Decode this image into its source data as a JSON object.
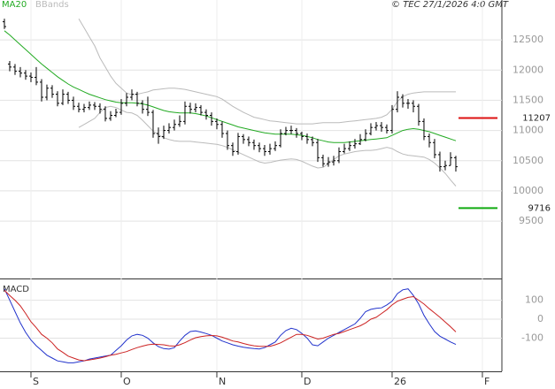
{
  "chart_data": [
    {
      "type": "ohlc",
      "source": "© TEC 27/1/2026 4:0 GMT",
      "ylim": [
        8550,
        13160
      ],
      "yticks": [
        9500,
        10000,
        10500,
        11000,
        11500,
        12000,
        12500
      ],
      "grid": true,
      "ohlc": {
        "color": "#000000",
        "open": [
          12800,
          12100,
          12050,
          11980,
          11950,
          11900,
          11880,
          11800,
          11550,
          11700,
          11600,
          11450,
          11600,
          11500,
          11400,
          11350,
          11380,
          11420,
          11400,
          11350,
          11200,
          11250,
          11300,
          11450,
          11550,
          11600,
          11450,
          11350,
          11300,
          10950,
          10900,
          11000,
          11050,
          11100,
          11150,
          11400,
          11350,
          11380,
          11300,
          11250,
          11150,
          11100,
          10950,
          10750,
          10650,
          10900,
          10850,
          10800,
          10750,
          10700,
          10650,
          10700,
          10750,
          10950,
          11000,
          11000,
          10950,
          10900,
          10850,
          10800,
          10550,
          10450,
          10480,
          10500,
          10650,
          10700,
          10750,
          10780,
          10850,
          10950,
          11050,
          11080,
          11050,
          11000,
          11350,
          11550,
          11450,
          11450,
          11400,
          11150,
          10900,
          10800,
          10600,
          10400,
          10420,
          10550
        ],
        "high": [
          12850,
          12150,
          12100,
          12050,
          12000,
          11960,
          12050,
          11850,
          11760,
          11750,
          11650,
          11680,
          11640,
          11560,
          11460,
          11440,
          11480,
          11470,
          11450,
          11400,
          11320,
          11360,
          11520,
          11620,
          11680,
          11640,
          11500,
          11560,
          11340,
          11050,
          11080,
          11120,
          11180,
          11250,
          11480,
          11460,
          11450,
          11420,
          11350,
          11300,
          11200,
          11150,
          11000,
          10800,
          10960,
          10940,
          10900,
          10850,
          10800,
          10760,
          10780,
          10820,
          11020,
          11060,
          11080,
          11040,
          10980,
          10950,
          10900,
          10860,
          10600,
          10560,
          10580,
          10720,
          10780,
          10820,
          10860,
          10940,
          11020,
          11120,
          11140,
          11140,
          11100,
          11420,
          11650,
          11600,
          11520,
          11500,
          11440,
          11200,
          10950,
          10860,
          10650,
          10500,
          10640,
          10580
        ],
        "low": [
          12680,
          11980,
          11920,
          11880,
          11840,
          11800,
          11750,
          11480,
          11500,
          11540,
          11400,
          11420,
          11440,
          11340,
          11300,
          11300,
          11340,
          11340,
          11280,
          11150,
          11160,
          11220,
          11260,
          11400,
          11500,
          11400,
          11280,
          11240,
          10880,
          10780,
          10860,
          10950,
          11000,
          11060,
          11100,
          11280,
          11300,
          11250,
          11180,
          11080,
          11020,
          10880,
          10680,
          10580,
          10600,
          10780,
          10740,
          10680,
          10640,
          10580,
          10600,
          10660,
          10720,
          10920,
          10940,
          10880,
          10840,
          10780,
          10740,
          10480,
          10400,
          10400,
          10420,
          10460,
          10620,
          10660,
          10700,
          10760,
          10820,
          10920,
          11000,
          10980,
          10950,
          10950,
          11300,
          11380,
          11360,
          11300,
          11080,
          10840,
          10720,
          10540,
          10320,
          10340,
          10420,
          10320
        ],
        "close": [
          12720,
          12050,
          11980,
          11950,
          11900,
          11880,
          11800,
          11550,
          11700,
          11600,
          11450,
          11600,
          11500,
          11400,
          11350,
          11380,
          11420,
          11400,
          11350,
          11200,
          11250,
          11300,
          11450,
          11550,
          11600,
          11450,
          11350,
          11300,
          10950,
          10900,
          11000,
          11050,
          11100,
          11150,
          11400,
          11350,
          11380,
          11300,
          11250,
          11150,
          11100,
          10950,
          10750,
          10650,
          10900,
          10850,
          10800,
          10750,
          10700,
          10650,
          10700,
          10750,
          10950,
          11000,
          11000,
          10950,
          10900,
          10850,
          10800,
          10550,
          10450,
          10480,
          10500,
          10650,
          10700,
          10750,
          10780,
          10850,
          10950,
          11050,
          11080,
          11050,
          11000,
          11350,
          11550,
          11450,
          11450,
          11400,
          11150,
          10900,
          10800,
          10600,
          10400,
          10420,
          10550,
          10400
        ]
      },
      "series": [
        {
          "name": "MA20",
          "color": "#22aa22",
          "values": [
            12650,
            12580,
            12500,
            12420,
            12340,
            12260,
            12180,
            12100,
            12030,
            11960,
            11890,
            11830,
            11770,
            11720,
            11680,
            11640,
            11600,
            11570,
            11540,
            11510,
            11490,
            11470,
            11460,
            11460,
            11460,
            11450,
            11440,
            11420,
            11390,
            11360,
            11330,
            11310,
            11300,
            11290,
            11290,
            11290,
            11280,
            11260,
            11240,
            11210,
            11180,
            11150,
            11120,
            11090,
            11060,
            11040,
            11020,
            11000,
            10980,
            10960,
            10950,
            10940,
            10940,
            10940,
            10940,
            10930,
            10920,
            10900,
            10880,
            10850,
            10830,
            10810,
            10800,
            10800,
            10800,
            10810,
            10820,
            10830,
            10840,
            10850,
            10860,
            10870,
            10880,
            10920,
            10960,
            11000,
            11020,
            11030,
            11020,
            11000,
            10980,
            10950,
            10920,
            10890,
            10860,
            10830
          ]
        }
      ],
      "bands": {
        "name": "BBands",
        "color": "#bbbbbb",
        "upper": [
          null,
          null,
          null,
          null,
          null,
          null,
          null,
          null,
          null,
          null,
          null,
          null,
          null,
          null,
          12850,
          12700,
          12550,
          12400,
          12200,
          12050,
          11900,
          11780,
          11700,
          11620,
          11590,
          11600,
          11620,
          11640,
          11670,
          11680,
          11690,
          11700,
          11700,
          11690,
          11680,
          11660,
          11640,
          11620,
          11600,
          11580,
          11560,
          11520,
          11460,
          11400,
          11350,
          11300,
          11260,
          11220,
          11200,
          11180,
          11160,
          11150,
          11140,
          11130,
          11120,
          11110,
          11110,
          11110,
          11110,
          11120,
          11130,
          11130,
          11130,
          11130,
          11140,
          11150,
          11160,
          11170,
          11180,
          11190,
          11200,
          11220,
          11260,
          11350,
          11480,
          11560,
          11600,
          11620,
          11630,
          11640,
          11640,
          11640,
          11640,
          11640,
          11640,
          11640
        ],
        "lower": [
          null,
          null,
          null,
          null,
          null,
          null,
          null,
          null,
          null,
          null,
          null,
          null,
          null,
          null,
          11050,
          11100,
          11150,
          11200,
          11300,
          11380,
          11400,
          11380,
          11340,
          11300,
          11290,
          11250,
          11170,
          11080,
          10990,
          10930,
          10880,
          10850,
          10830,
          10820,
          10820,
          10820,
          10810,
          10800,
          10790,
          10780,
          10770,
          10750,
          10720,
          10680,
          10640,
          10600,
          10560,
          10520,
          10480,
          10460,
          10470,
          10490,
          10510,
          10520,
          10530,
          10520,
          10490,
          10450,
          10410,
          10380,
          10390,
          10450,
          10520,
          10580,
          10610,
          10630,
          10650,
          10660,
          10670,
          10670,
          10680,
          10700,
          10720,
          10700,
          10650,
          10610,
          10590,
          10580,
          10570,
          10560,
          10520,
          10460,
          10380,
          10290,
          10180,
          10080
        ]
      },
      "levels": [
        {
          "value": 11207,
          "color": "#dd1111"
        },
        {
          "value": 9716,
          "color": "#11aa11"
        }
      ]
    },
    {
      "type": "line",
      "title": "MACD",
      "xlim": [
        -0.83,
        93.67
      ],
      "xticks": [
        {
          "value": 5,
          "label": "S"
        },
        {
          "value": 22,
          "label": "O"
        },
        {
          "value": 40,
          "label": "N"
        },
        {
          "value": 56,
          "label": "D"
        },
        {
          "value": 73,
          "label": "26"
        },
        {
          "value": 90,
          "label": "F"
        }
      ],
      "ylim": [
        -275,
        210
      ],
      "yticks": [
        -100,
        0,
        100
      ],
      "grid": true,
      "series": [
        {
          "color": "#2233cc",
          "values": [
            160,
            100,
            40,
            -20,
            -70,
            -110,
            -140,
            -165,
            -190,
            -205,
            -220,
            -225,
            -230,
            -230,
            -225,
            -220,
            -210,
            -205,
            -200,
            -195,
            -190,
            -165,
            -140,
            -110,
            -88,
            -80,
            -85,
            -100,
            -125,
            -145,
            -155,
            -158,
            -150,
            -115,
            -85,
            -65,
            -62,
            -68,
            -76,
            -85,
            -100,
            -115,
            -125,
            -135,
            -142,
            -148,
            -152,
            -155,
            -157,
            -150,
            -135,
            -120,
            -85,
            -60,
            -48,
            -55,
            -75,
            -100,
            -135,
            -140,
            -120,
            -100,
            -85,
            -70,
            -55,
            -40,
            -25,
            5,
            40,
            52,
            57,
            60,
            75,
            95,
            135,
            155,
            160,
            125,
            80,
            20,
            -25,
            -65,
            -90,
            -105,
            -120,
            -133
          ]
        },
        {
          "color": "#cc2222",
          "values": [
            152,
            125,
            100,
            70,
            30,
            -14,
            -45,
            -80,
            -100,
            -125,
            -157,
            -175,
            -195,
            -205,
            -215,
            -219,
            -215,
            -210,
            -205,
            -198,
            -190,
            -185,
            -178,
            -171,
            -160,
            -150,
            -142,
            -135,
            -132,
            -133,
            -135,
            -140,
            -142,
            -135,
            -124,
            -110,
            -98,
            -92,
            -88,
            -86,
            -88,
            -95,
            -105,
            -115,
            -120,
            -128,
            -135,
            -140,
            -143,
            -143,
            -143,
            -135,
            -125,
            -110,
            -95,
            -80,
            -80,
            -85,
            -95,
            -105,
            -100,
            -90,
            -80,
            -75,
            -65,
            -55,
            -45,
            -35,
            -20,
            0,
            10,
            30,
            50,
            75,
            95,
            105,
            115,
            119,
            100,
            80,
            55,
            33,
            10,
            -15,
            -40,
            -67
          ]
        }
      ]
    }
  ]
}
